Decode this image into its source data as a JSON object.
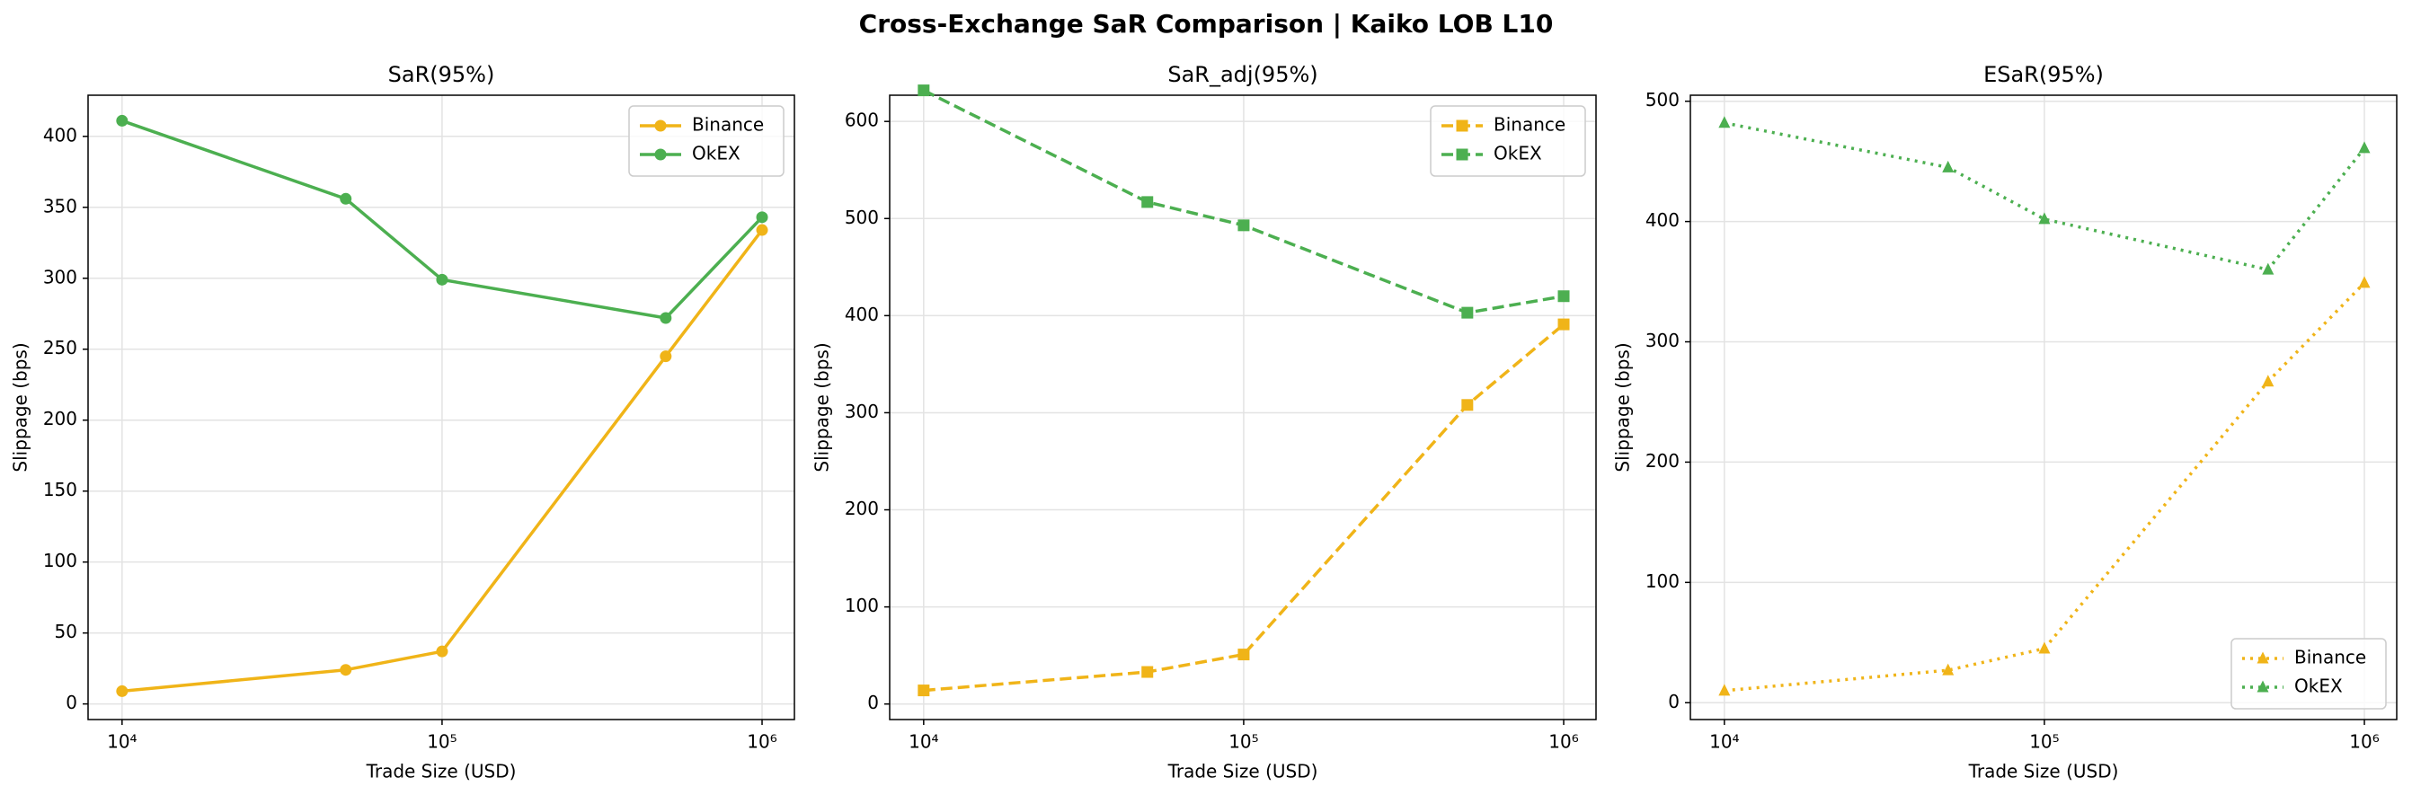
{
  "title": "Cross-Exchange SaR Comparison | Kaiko LOB L10",
  "chart_data": [
    {
      "type": "line",
      "title": "SaR(95%)",
      "xlabel": "Trade Size (USD)",
      "ylabel": "Slippage (bps)",
      "x": [
        10000,
        50000,
        100000,
        500000,
        1000000
      ],
      "xscale": "log",
      "xlim": [
        7830,
        1262000
      ],
      "xticks": [
        {
          "value": 10000,
          "label": "10⁴"
        },
        {
          "value": 100000,
          "label": "10⁵"
        },
        {
          "value": 1000000,
          "label": "10⁶"
        }
      ],
      "ylim": [
        -11,
        429
      ],
      "yticks": [
        0,
        50,
        100,
        150,
        200,
        250,
        300,
        350,
        400
      ],
      "grid": true,
      "legend": "upper right",
      "linestyle": "solid",
      "marker": "circle",
      "series": [
        {
          "name": "Binance",
          "color": "#f0b418",
          "values": [
            9,
            24,
            37,
            245,
            334
          ]
        },
        {
          "name": "OkEX",
          "color": "#4caf50",
          "values": [
            411,
            356,
            299,
            272,
            343
          ]
        }
      ]
    },
    {
      "type": "line",
      "title": "SaR_adj(95%)",
      "xlabel": "Trade Size (USD)",
      "ylabel": "Slippage (bps)",
      "x": [
        10000,
        50000,
        100000,
        500000,
        1000000
      ],
      "xscale": "log",
      "xlim": [
        7830,
        1262000
      ],
      "xticks": [
        {
          "value": 10000,
          "label": "10⁴"
        },
        {
          "value": 100000,
          "label": "10⁵"
        },
        {
          "value": 1000000,
          "label": "10⁶"
        }
      ],
      "ylim": [
        -16,
        627
      ],
      "yticks": [
        0,
        100,
        200,
        300,
        400,
        500,
        600
      ],
      "grid": true,
      "legend": "upper right",
      "linestyle": "dashed",
      "marker": "square",
      "series": [
        {
          "name": "Binance",
          "color": "#f0b418",
          "values": [
            14,
            33,
            51,
            308,
            391
          ]
        },
        {
          "name": "OkEX",
          "color": "#4caf50",
          "values": [
            632,
            517,
            493,
            403,
            420
          ]
        }
      ]
    },
    {
      "type": "line",
      "title": "ESaR(95%)",
      "xlabel": "Trade Size (USD)",
      "ylabel": "Slippage (bps)",
      "x": [
        10000,
        50000,
        100000,
        500000,
        1000000
      ],
      "xscale": "log",
      "xlim": [
        7830,
        1262000
      ],
      "xticks": [
        {
          "value": 10000,
          "label": "10⁴"
        },
        {
          "value": 100000,
          "label": "10⁵"
        },
        {
          "value": 1000000,
          "label": "10⁶"
        }
      ],
      "ylim": [
        -14,
        505
      ],
      "yticks": [
        0,
        100,
        200,
        300,
        400,
        500
      ],
      "grid": true,
      "legend": "lower right",
      "linestyle": "dotted",
      "marker": "triangle",
      "series": [
        {
          "name": "Binance",
          "color": "#f0b418",
          "values": [
            10,
            27,
            45,
            267,
            349
          ]
        },
        {
          "name": "OkEX",
          "color": "#4caf50",
          "values": [
            482,
            445,
            402,
            360,
            461
          ]
        }
      ]
    }
  ]
}
